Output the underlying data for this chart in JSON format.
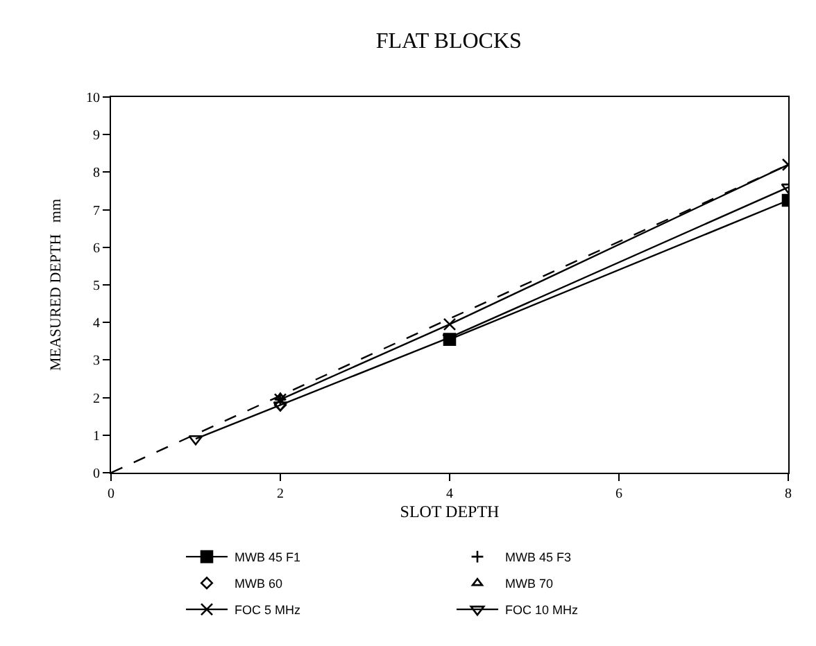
{
  "chart_data": {
    "type": "line",
    "title": "FLAT BLOCKS",
    "xlabel": "SLOT DEPTH",
    "ylabel": "MEASURED DEPTH   mm",
    "xlim": [
      0,
      8
    ],
    "xticks": [
      0,
      2,
      4,
      6,
      8
    ],
    "ylim": [
      0,
      10
    ],
    "yticks": [
      0,
      1,
      2,
      3,
      4,
      5,
      6,
      7,
      8,
      9,
      10
    ],
    "legend": "bottom",
    "series": [
      {
        "name": "MWB 45 F1",
        "color": "#000000",
        "marker": "square",
        "x": [
          4,
          8
        ],
        "values": [
          3.55,
          7.25
        ]
      },
      {
        "name": "MWB 45 F3",
        "color": "#000000",
        "type": "scatter",
        "marker": "cross",
        "x": [
          2
        ],
        "values": [
          1.95
        ]
      },
      {
        "name": "MWB 60",
        "color": "#000000",
        "type": "scatter",
        "marker": "diamond",
        "x": [
          2
        ],
        "values": [
          1.8
        ]
      },
      {
        "name": "MWB 70",
        "color": "#000000",
        "type": "scatter",
        "marker": "triangle",
        "x": [
          2
        ],
        "values": [
          2
        ]
      },
      {
        "name": "FOC 5 MHz",
        "color": "#000000",
        "marker": "x",
        "x": [
          2,
          4,
          8
        ],
        "values": [
          1.95,
          3.95,
          8.2
        ]
      },
      {
        "name": "FOC 10 MHz",
        "color": "#000000",
        "marker": "triangle-down",
        "x": [
          1,
          2,
          4,
          8
        ],
        "values": [
          0.9,
          1.8,
          3.6,
          7.6
        ]
      },
      {
        "color": "#000000",
        "marker": "none",
        "line_style": "dashed",
        "x": [
          0,
          8
        ],
        "values": [
          0,
          8.2
        ]
      }
    ]
  }
}
